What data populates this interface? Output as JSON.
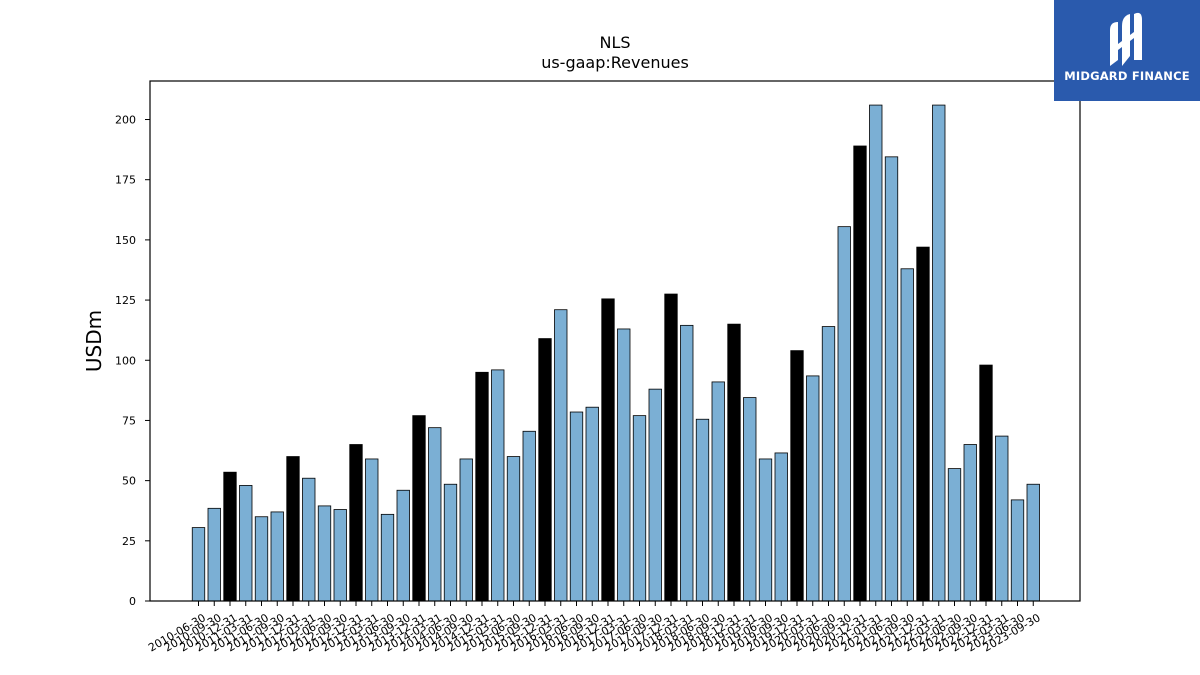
{
  "logo": {
    "text": "MIDGARD FINANCE",
    "bg_color": "#2a5aad"
  },
  "chart_data": {
    "type": "bar",
    "title": "NLS",
    "subtitle": "us-gaap:Revenues",
    "xlabel": "",
    "ylabel": "USDm",
    "ylim": [
      0,
      216
    ],
    "yticks": [
      0,
      25,
      50,
      75,
      100,
      125,
      150,
      175,
      200
    ],
    "grid": false,
    "colors": {
      "quarterly": "#7bafd4",
      "annual": "#000000"
    },
    "categories": [
      "2010-06-30",
      "2010-09-30",
      "2010-12-31",
      "2011-03-31",
      "2011-06-30",
      "2011-09-30",
      "2011-12-31",
      "2012-03-31",
      "2012-06-30",
      "2012-09-30",
      "2012-12-31",
      "2013-03-31",
      "2013-06-30",
      "2013-09-30",
      "2013-12-31",
      "2014-03-31",
      "2014-06-30",
      "2014-09-30",
      "2014-12-31",
      "2015-03-31",
      "2015-06-30",
      "2015-09-30",
      "2015-12-31",
      "2016-03-31",
      "2016-06-30",
      "2016-09-30",
      "2016-12-31",
      "2017-03-31",
      "2017-06-30",
      "2017-09-30",
      "2017-12-31",
      "2018-03-31",
      "2018-06-30",
      "2018-09-30",
      "2018-12-31",
      "2019-03-31",
      "2019-06-30",
      "2019-09-30",
      "2019-12-31",
      "2020-03-31",
      "2020-06-30",
      "2020-09-30",
      "2020-12-31",
      "2021-03-31",
      "2021-06-30",
      "2021-09-30",
      "2021-12-31",
      "2022-03-31",
      "2022-06-30",
      "2022-09-30",
      "2022-12-31",
      "2023-03-31",
      "2023-06-30",
      "2023-09-30"
    ],
    "values": [
      30.5,
      38.5,
      53.5,
      48,
      35,
      37,
      60,
      51,
      39.5,
      38,
      65,
      59,
      36,
      46,
      77,
      72,
      48.5,
      59,
      95,
      96,
      60,
      70.5,
      109,
      121,
      78.5,
      80.5,
      125.5,
      113,
      77,
      88,
      127.5,
      114.5,
      75.5,
      91,
      115,
      84.5,
      59,
      61.5,
      104,
      93.5,
      114,
      155.5,
      189,
      206,
      184.5,
      138,
      147,
      206,
      55,
      65,
      98,
      68.5,
      42,
      48.5
    ],
    "annual": [
      false,
      false,
      true,
      false,
      false,
      false,
      true,
      false,
      false,
      false,
      true,
      false,
      false,
      false,
      true,
      false,
      false,
      false,
      true,
      false,
      false,
      false,
      true,
      false,
      false,
      false,
      true,
      false,
      false,
      false,
      true,
      false,
      false,
      false,
      true,
      false,
      false,
      false,
      true,
      false,
      false,
      false,
      true,
      false,
      false,
      false,
      true,
      false,
      false,
      false,
      true,
      false,
      false,
      false
    ]
  }
}
